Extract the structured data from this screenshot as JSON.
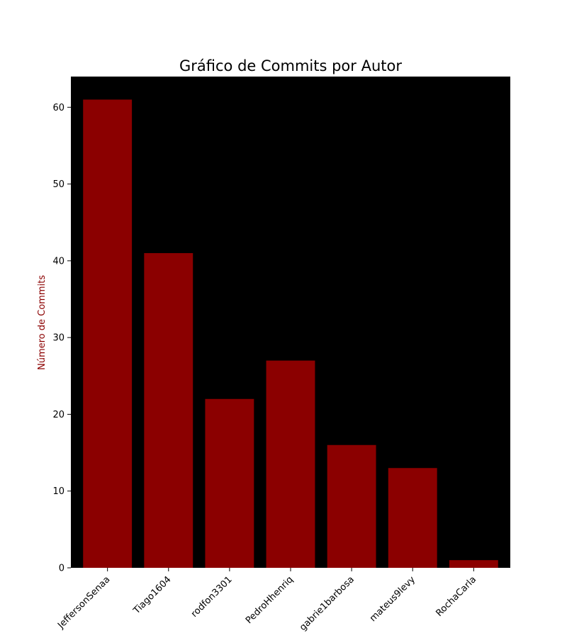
{
  "chart_data": {
    "type": "bar",
    "title": "Gráfico de Commits por Autor",
    "xlabel": "",
    "ylabel": "Número de Commits",
    "categories": [
      "JeffersonSenaa",
      "Tiago1604",
      "rodfon3301",
      "PedroHhenriq",
      "gabrie1barbosa",
      "mateus9levy",
      "RochaCarla"
    ],
    "values": [
      61,
      41,
      22,
      27,
      16,
      13,
      1
    ],
    "ylim": [
      0,
      64
    ],
    "yticks": [
      0,
      10,
      20,
      30,
      40,
      50,
      60
    ],
    "grid": false,
    "legend": "none",
    "colors": {
      "bar": "#8b0000",
      "plot_background": "#000000",
      "ylabel": "#8b0000"
    }
  }
}
